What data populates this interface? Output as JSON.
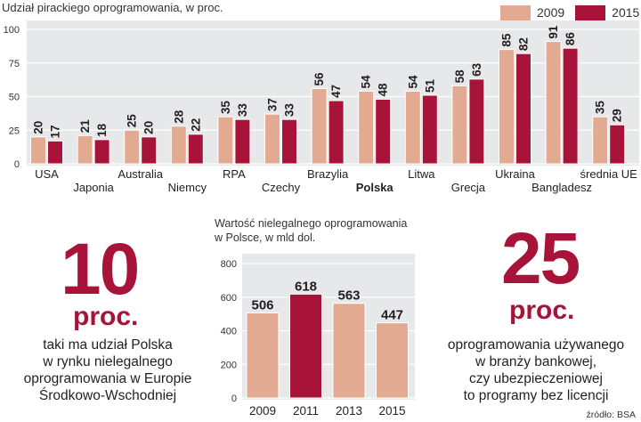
{
  "title": "Udział pirackiego oprogramowania, w proc.",
  "legend": [
    {
      "label": "2009",
      "color": "#e3aa92"
    },
    {
      "label": "2015",
      "color": "#a8133a"
    }
  ],
  "chart_data": [
    {
      "type": "bar",
      "title": "Udział pirackiego oprogramowania, w proc.",
      "categories": [
        "USA",
        "Japonia",
        "Australia",
        "Niemcy",
        "RPA",
        "Czechy",
        "Brazylia",
        "Polska",
        "Litwa",
        "Grecja",
        "Ukraina",
        "Bangladesz",
        "średnia UE"
      ],
      "series": [
        {
          "name": "2009",
          "values": [
            20,
            21,
            25,
            28,
            35,
            37,
            56,
            54,
            54,
            58,
            85,
            91,
            35
          ]
        },
        {
          "name": "2015",
          "values": [
            17,
            18,
            20,
            22,
            33,
            33,
            47,
            48,
            51,
            63,
            82,
            86,
            29
          ]
        }
      ],
      "yticks": [
        0,
        25,
        50,
        75,
        100
      ],
      "ylim": [
        0,
        100
      ],
      "highlight_category": "Polska",
      "grid": true,
      "colors": {
        "2009": "#e3aa92",
        "2015": "#a8133a",
        "panel": "#e7e8ea"
      }
    },
    {
      "type": "bar",
      "title": "Wartość nielegalnego oprogramowania w Polsce, w mld dol.",
      "categories": [
        "2009",
        "2011",
        "2013",
        "2015"
      ],
      "values": [
        506,
        618,
        563,
        447
      ],
      "highlight_index": 1,
      "yticks": [
        0,
        200,
        400,
        600,
        800
      ],
      "ylim": [
        0,
        800
      ],
      "grid": true,
      "colors": {
        "normal": "#e3aa92",
        "highlight": "#a8133a",
        "panel": "#e7e8ea"
      }
    }
  ],
  "chart2_title_line1": "Wartość nielegalnego oprogramowania",
  "chart2_title_line2": "w Polsce, w mld dol.",
  "left_stat": {
    "number": "10",
    "unit": "proc.",
    "lines": [
      "taki ma udział Polska",
      "w rynku nielegalnego",
      "oprogramowania w Europie",
      "Środkowo-Wschodniej"
    ]
  },
  "right_stat": {
    "number": "25",
    "unit": "proc.",
    "lines": [
      "oprogramowania używanego",
      "w branży bankowej,",
      "czy ubezpieczeniowej",
      "to programy bez licencji"
    ]
  },
  "source": "źródło: BSA"
}
